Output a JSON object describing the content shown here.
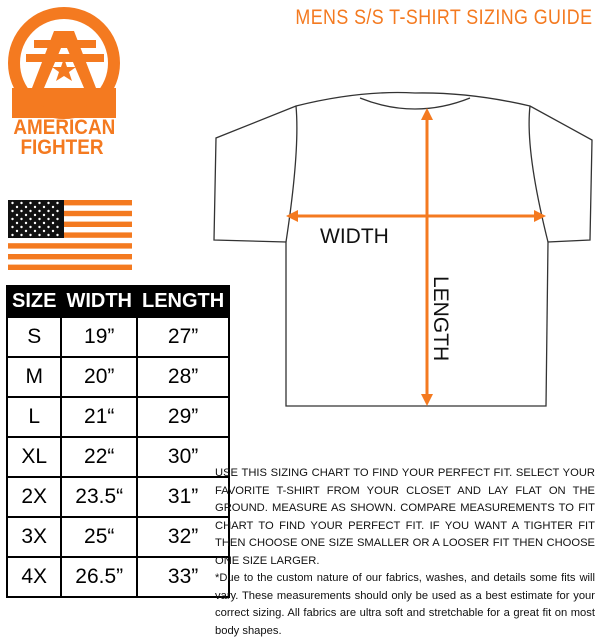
{
  "header": {
    "title": "MENS S/S T-SHIRT SIZING GUIDE"
  },
  "brand": {
    "name_line1": "AMERICAN",
    "name_line2": "FIGHTER",
    "logo_icon": "af-star-logo",
    "flag_icon": "us-flag"
  },
  "colors": {
    "accent": "#f47a20",
    "text": "#111111",
    "table_header_bg": "#000000"
  },
  "diagram": {
    "width_label": "WIDTH",
    "length_label": "LENGTH"
  },
  "size_table": {
    "headers": [
      "SIZE",
      "WIDTH",
      "LENGTH"
    ],
    "rows": [
      [
        "S",
        "19”",
        "27”"
      ],
      [
        "M",
        "20”",
        "28”"
      ],
      [
        "L",
        "21“",
        "29”"
      ],
      [
        "XL",
        "22“",
        "30”"
      ],
      [
        "2X",
        "23.5“",
        "31”"
      ],
      [
        "3X",
        "25“",
        "32”"
      ],
      [
        "4X",
        "26.5”",
        "33”"
      ]
    ]
  },
  "notes": {
    "instructions": "USE THIS SIZING CHART TO FIND YOUR PERFECT FIT. SELECT YOUR FAVORITE T-SHIRT FROM YOUR CLOSET AND LAY FLAT ON THE GROUND. MEASURE AS SHOWN. COMPARE MEASUREMENTS TO FIT CHART TO FIND YOUR PERFECT FIT. IF YOU WANT A TIGHTER FIT THEN CHOOSE ONE SIZE SMALLER OR A LOOSER FIT THEN CHOOSE ONE SIZE LARGER.",
    "disclaimer": "*Due to the custom nature of our fabrics, washes, and details some fits will vary. These measurements should only be used as a best estimate for your correct sizing. All fabrics are ultra soft and stretchable for a great fit on most body shapes."
  }
}
